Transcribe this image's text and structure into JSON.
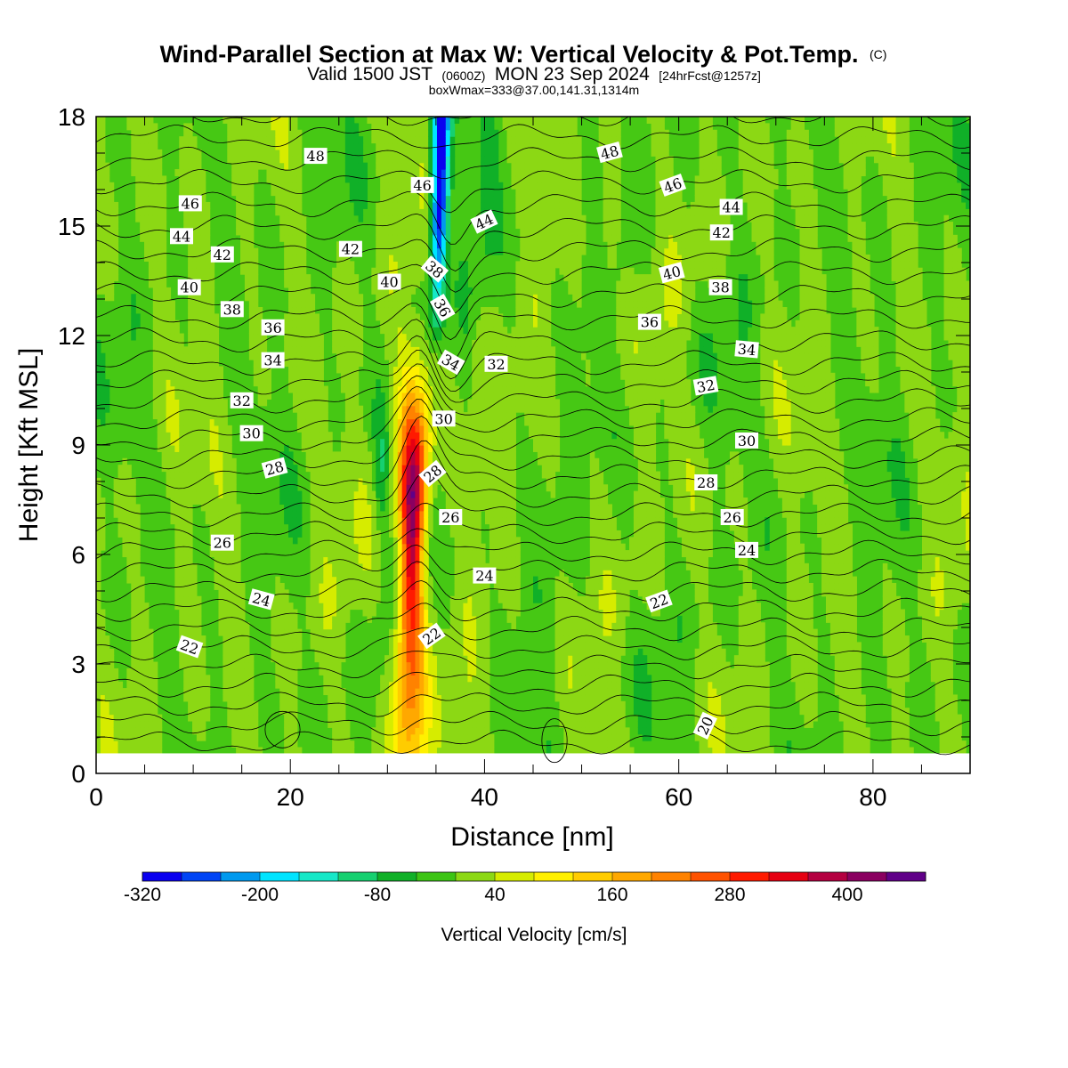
{
  "chart_data": {
    "type": "heatmap",
    "title": "Wind-Parallel Section at Max W: Vertical Velocity & Pot.Temp.",
    "title_mark": "(C)",
    "subtitle_main_1": "Valid 1500 JST",
    "subtitle_z": "(0600Z)",
    "subtitle_main_2": "MON 23 Sep 2024",
    "subtitle_fcst": "[24hrFcst@1257z]",
    "subtitle_box": "boxWmax=333@37.00,141.31,1314m",
    "xlabel": "Distance [nm]",
    "ylabel": "Height [Kft MSL]",
    "xlim": [
      0,
      90
    ],
    "ylim": [
      0,
      18
    ],
    "x_ticks": [
      "0",
      "20",
      "40",
      "60",
      "80"
    ],
    "y_ticks": [
      "0",
      "3",
      "6",
      "9",
      "12",
      "15",
      "18"
    ],
    "colorbar": {
      "label": "Vertical Velocity [cm/s]",
      "tick_labels": [
        "-320",
        "-200",
        "-80",
        "40",
        "160",
        "280",
        "400"
      ],
      "bins": [
        -320,
        -280,
        -240,
        -200,
        -160,
        -120,
        -80,
        -40,
        0,
        40,
        80,
        120,
        160,
        200,
        240,
        280,
        320,
        360,
        400,
        440,
        480
      ],
      "colors": [
        "#0a00f0",
        "#0044f5",
        "#0099ee",
        "#00e4ff",
        "#16e8c8",
        "#16d070",
        "#10b028",
        "#3cc414",
        "#8cd814",
        "#d6ec00",
        "#fff000",
        "#ffcc00",
        "#ffa800",
        "#ff8200",
        "#ff5200",
        "#ff1a00",
        "#e60012",
        "#b40040",
        "#8a0060",
        "#600088"
      ]
    },
    "updraft": {
      "x_center": 32.5,
      "peak_w": 440,
      "peak_height": 7.5,
      "base_height": 0.5,
      "top_height": 12.4
    },
    "downdraft": {
      "x_center": 35.3,
      "min_w": -320,
      "height_range": [
        11.5,
        18
      ]
    },
    "theta_contour_labels": [
      {
        "text": "48",
        "x": 22.6,
        "y": 16.9,
        "rot": 0
      },
      {
        "text": "46",
        "x": 9.7,
        "y": 15.6,
        "rot": 0
      },
      {
        "text": "44",
        "x": 8.8,
        "y": 14.7,
        "rot": 0
      },
      {
        "text": "42",
        "x": 13.0,
        "y": 14.2,
        "rot": 0
      },
      {
        "text": "40",
        "x": 9.6,
        "y": 13.3,
        "rot": 0
      },
      {
        "text": "38",
        "x": 14.0,
        "y": 12.7,
        "rot": 0
      },
      {
        "text": "36",
        "x": 18.2,
        "y": 12.2,
        "rot": 0
      },
      {
        "text": "34",
        "x": 18.2,
        "y": 11.3,
        "rot": 0
      },
      {
        "text": "32",
        "x": 15.0,
        "y": 10.2,
        "rot": 0
      },
      {
        "text": "30",
        "x": 16.0,
        "y": 9.3,
        "rot": 0
      },
      {
        "text": "28",
        "x": 18.4,
        "y": 8.35,
        "rot": -15
      },
      {
        "text": "26",
        "x": 13.0,
        "y": 6.3,
        "rot": 0
      },
      {
        "text": "24",
        "x": 17.0,
        "y": 4.75,
        "rot": 15
      },
      {
        "text": "22",
        "x": 9.6,
        "y": 3.45,
        "rot": 20
      },
      {
        "text": "42",
        "x": 26.2,
        "y": 14.35,
        "rot": 0
      },
      {
        "text": "40",
        "x": 30.2,
        "y": 13.45,
        "rot": 0
      },
      {
        "text": "46",
        "x": 33.6,
        "y": 16.1,
        "rot": 0
      },
      {
        "text": "44",
        "x": 40.0,
        "y": 15.1,
        "rot": -25
      },
      {
        "text": "38",
        "x": 34.8,
        "y": 13.8,
        "rot": 40
      },
      {
        "text": "36",
        "x": 35.6,
        "y": 12.75,
        "rot": 60
      },
      {
        "text": "34",
        "x": 36.5,
        "y": 11.25,
        "rot": 30
      },
      {
        "text": "32",
        "x": 41.2,
        "y": 11.2,
        "rot": 0
      },
      {
        "text": "30",
        "x": 35.8,
        "y": 9.7,
        "rot": 0
      },
      {
        "text": "28",
        "x": 34.7,
        "y": 8.2,
        "rot": -40
      },
      {
        "text": "26",
        "x": 36.5,
        "y": 7.0,
        "rot": 0
      },
      {
        "text": "24",
        "x": 40.0,
        "y": 5.4,
        "rot": 0
      },
      {
        "text": "22",
        "x": 34.6,
        "y": 3.75,
        "rot": -35
      },
      {
        "text": "48",
        "x": 52.9,
        "y": 17.0,
        "rot": -15
      },
      {
        "text": "46",
        "x": 59.4,
        "y": 16.1,
        "rot": -20
      },
      {
        "text": "44",
        "x": 65.4,
        "y": 15.5,
        "rot": 0
      },
      {
        "text": "42",
        "x": 64.4,
        "y": 14.8,
        "rot": 0
      },
      {
        "text": "40",
        "x": 59.3,
        "y": 13.7,
        "rot": -15
      },
      {
        "text": "38",
        "x": 64.3,
        "y": 13.3,
        "rot": 0
      },
      {
        "text": "36",
        "x": 57.0,
        "y": 12.35,
        "rot": 0
      },
      {
        "text": "34",
        "x": 67.0,
        "y": 11.6,
        "rot": 5
      },
      {
        "text": "32",
        "x": 62.8,
        "y": 10.6,
        "rot": -10
      },
      {
        "text": "30",
        "x": 67.0,
        "y": 9.1,
        "rot": 0
      },
      {
        "text": "28",
        "x": 62.8,
        "y": 7.95,
        "rot": 0
      },
      {
        "text": "26",
        "x": 65.5,
        "y": 7.0,
        "rot": 0
      },
      {
        "text": "24",
        "x": 67.0,
        "y": 6.1,
        "rot": 0
      },
      {
        "text": "22",
        "x": 58.0,
        "y": 4.7,
        "rot": -20
      },
      {
        "text": "20",
        "x": 62.8,
        "y": 1.3,
        "rot": -65
      }
    ]
  }
}
